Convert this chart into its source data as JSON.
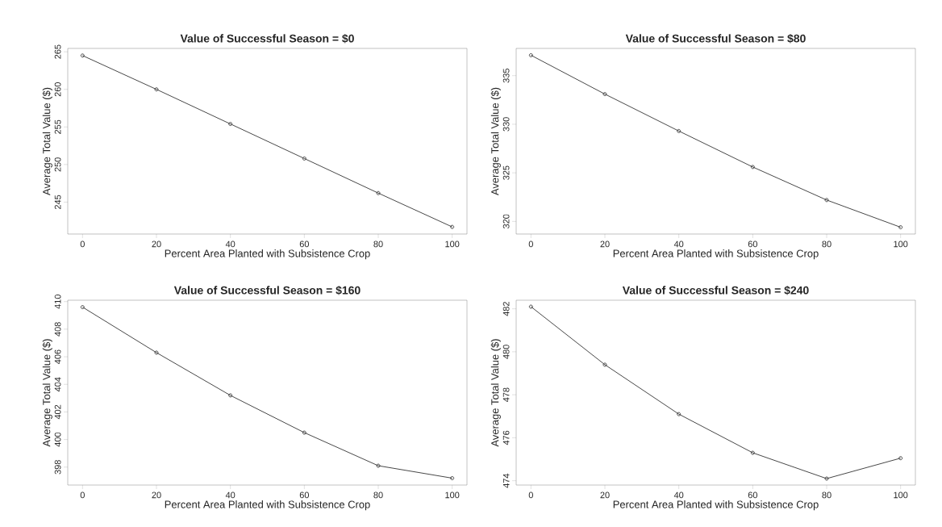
{
  "chart_data": [
    {
      "type": "line",
      "title": "Value of Successful Season =  $0",
      "xlabel": "Percent Area Planted with Subsistence Crop",
      "ylabel": "Average Total Value ($)",
      "x": [
        0,
        20,
        40,
        60,
        80,
        100
      ],
      "xlim": [
        -4,
        104
      ],
      "xticks": [
        0,
        20,
        40,
        60,
        80,
        100
      ],
      "ylim": [
        240.75,
        265.45
      ],
      "yticks": [
        245,
        250,
        255,
        260,
        265
      ],
      "marker": "circle",
      "series": [
        {
          "color": "#333333",
          "values": [
            264.5,
            260.0,
            255.4,
            250.8,
            246.2,
            241.7
          ]
        }
      ]
    },
    {
      "type": "line",
      "title": "Value of Successful Season =  $80",
      "xlabel": "Percent Area Planted with Subsistence Crop",
      "ylabel": "Average Total Value ($)",
      "x": [
        0,
        20,
        40,
        60,
        80,
        100
      ],
      "xlim": [
        -4,
        104
      ],
      "xticks": [
        0,
        20,
        40,
        60,
        80,
        100
      ],
      "ylim": [
        318.7,
        337.8
      ],
      "yticks": [
        320,
        325,
        330,
        335
      ],
      "marker": "circle",
      "series": [
        {
          "color": "#333333",
          "values": [
            337.1,
            333.1,
            329.3,
            325.6,
            322.2,
            319.4
          ]
        }
      ]
    },
    {
      "type": "line",
      "title": "Value of Successful Season =  $160",
      "xlabel": "Percent Area Planted with Subsistence Crop",
      "ylabel": "Average Total Value ($)",
      "x": [
        0,
        20,
        40,
        60,
        80,
        100
      ],
      "xlim": [
        -4,
        104
      ],
      "xticks": [
        0,
        20,
        40,
        60,
        80,
        100
      ],
      "ylim": [
        396.7,
        410.1
      ],
      "yticks": [
        398,
        400,
        402,
        404,
        406,
        408,
        410
      ],
      "marker": "circle",
      "series": [
        {
          "color": "#333333",
          "values": [
            409.6,
            406.3,
            403.2,
            400.5,
            398.1,
            397.2
          ]
        }
      ]
    },
    {
      "type": "line",
      "title": "Value of Successful Season =  $240",
      "xlabel": "Percent Area Planted with Subsistence Crop",
      "ylabel": "Average Total Value ($)",
      "x": [
        0,
        20,
        40,
        60,
        80,
        100
      ],
      "xlim": [
        -4,
        104
      ],
      "xticks": [
        0,
        20,
        40,
        60,
        80,
        100
      ],
      "ylim": [
        473.8,
        482.4
      ],
      "yticks": [
        474,
        476,
        478,
        480,
        482
      ],
      "marker": "circle",
      "series": [
        {
          "color": "#333333",
          "values": [
            482.1,
            479.4,
            477.1,
            475.3,
            474.1,
            475.05
          ]
        }
      ]
    }
  ]
}
